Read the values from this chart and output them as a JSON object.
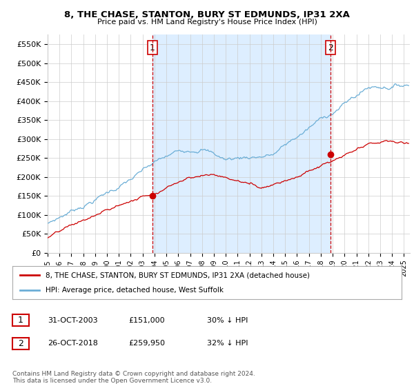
{
  "title": "8, THE CHASE, STANTON, BURY ST EDMUNDS, IP31 2XA",
  "subtitle": "Price paid vs. HM Land Registry's House Price Index (HPI)",
  "ylabel_ticks": [
    "£0",
    "£50K",
    "£100K",
    "£150K",
    "£200K",
    "£250K",
    "£300K",
    "£350K",
    "£400K",
    "£450K",
    "£500K",
    "£550K"
  ],
  "ytick_values": [
    0,
    50000,
    100000,
    150000,
    200000,
    250000,
    300000,
    350000,
    400000,
    450000,
    500000,
    550000
  ],
  "ylim": [
    0,
    575000
  ],
  "xlim_start": 1995.0,
  "xlim_end": 2025.5,
  "purchase1_x": 2003.83,
  "purchase1_y": 151000,
  "purchase2_x": 2018.82,
  "purchase2_y": 259950,
  "hpi_color": "#6baed6",
  "price_color": "#cc0000",
  "vline_color": "#cc0000",
  "shade_color": "#ddeeff",
  "grid_color": "#cccccc",
  "bg_color": "#ffffff",
  "legend_entries": [
    "8, THE CHASE, STANTON, BURY ST EDMUNDS, IP31 2XA (detached house)",
    "HPI: Average price, detached house, West Suffolk"
  ],
  "table_rows": [
    [
      "1",
      "31-OCT-2003",
      "£151,000",
      "30% ↓ HPI"
    ],
    [
      "2",
      "26-OCT-2018",
      "£259,950",
      "32% ↓ HPI"
    ]
  ],
  "footer_text": "Contains HM Land Registry data © Crown copyright and database right 2024.\nThis data is licensed under the Open Government Licence v3.0."
}
